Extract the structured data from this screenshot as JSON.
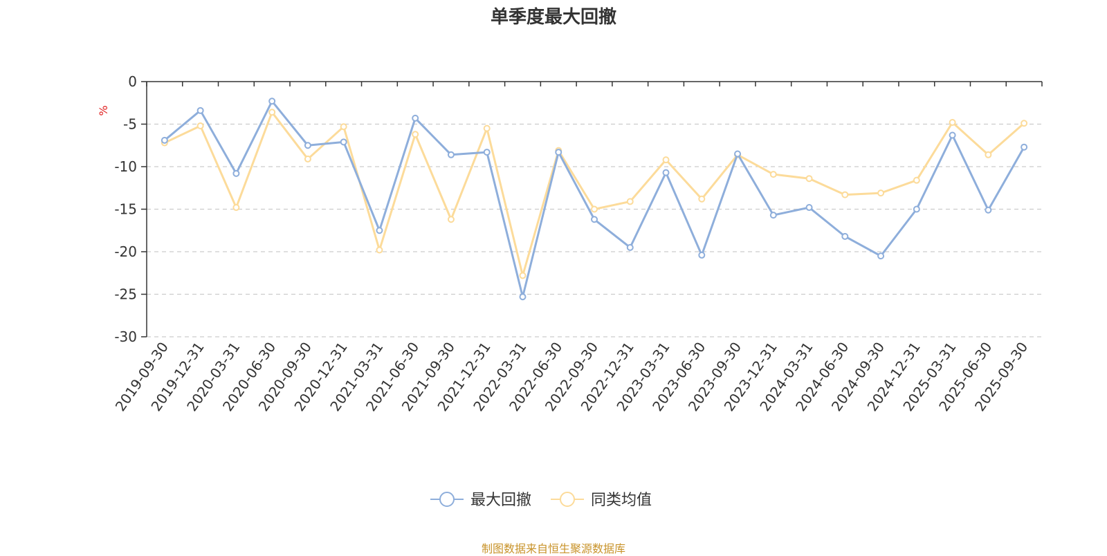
{
  "chart_data": {
    "type": "line",
    "title": "单季度最大回撤",
    "ylabel": "%",
    "xlabel": "",
    "ylim": [
      -30,
      0
    ],
    "yticks": [
      0,
      -5,
      -10,
      -15,
      -20,
      -25,
      -30
    ],
    "grid": true,
    "legend_position": "bottom-center",
    "x": [
      "2019-09-30",
      "2019-12-31",
      "2020-03-31",
      "2020-06-30",
      "2020-09-30",
      "2020-12-31",
      "2021-03-31",
      "2021-06-30",
      "2021-09-30",
      "2021-12-31",
      "2022-03-31",
      "2022-06-30",
      "2022-09-30",
      "2022-12-31",
      "2023-03-31",
      "2023-06-30",
      "2023-09-30",
      "2023-12-31",
      "2024-03-31",
      "2024-06-30",
      "2024-09-30",
      "2024-12-31",
      "2025-03-31",
      "2025-06-30",
      "2025-09-30"
    ],
    "series": [
      {
        "name": "最大回撤",
        "color": "#8eaedb",
        "values": [
          -6.9,
          -3.4,
          -10.8,
          -2.3,
          -7.5,
          -7.1,
          -17.5,
          -4.3,
          -8.6,
          -8.3,
          -25.3,
          -8.3,
          -16.2,
          -19.5,
          -10.7,
          -20.4,
          -8.5,
          -15.7,
          -14.8,
          -18.2,
          -20.5,
          -15.0,
          -6.3,
          -15.1,
          -7.7
        ]
      },
      {
        "name": "同类均值",
        "color": "#fcdb9a",
        "values": [
          -7.2,
          -5.2,
          -14.8,
          -3.6,
          -9.1,
          -5.3,
          -19.8,
          -6.2,
          -16.2,
          -5.5,
          -22.8,
          -8.1,
          -15.0,
          -14.1,
          -9.2,
          -13.8,
          -8.6,
          -10.9,
          -11.4,
          -13.3,
          -13.1,
          -11.6,
          -4.8,
          -8.6,
          -4.9
        ]
      }
    ]
  },
  "footer": {
    "source": "制图数据来自恒生聚源数据库"
  }
}
